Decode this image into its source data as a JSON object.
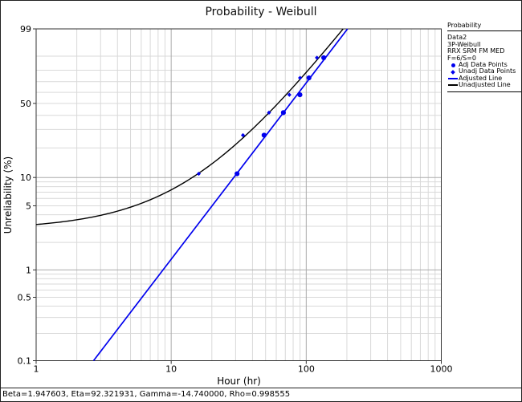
{
  "colors": {
    "series_blue": "#0000ee",
    "line_black": "#000000",
    "grid_minor": "#d9d9d9",
    "grid_major": "#ababab",
    "frame": "#333333"
  },
  "legend": {
    "header": "Probability",
    "info_lines": [
      "Data2",
      "3P-Weibull",
      "RRX SRM FM MED",
      "F=6/S=0"
    ],
    "items": [
      {
        "marker": "circle",
        "label": "Adj Data Points"
      },
      {
        "marker": "diamond",
        "label": "Unadj Data Points"
      },
      {
        "marker": "line-blue",
        "label": "Adjusted Line"
      },
      {
        "marker": "line-black",
        "label": "Unadjusted Line"
      }
    ]
  },
  "status_bar": {
    "text": "Beta=1.947603, Eta=92.321931, Gamma=-14.740000, Rho=0.998555"
  },
  "chart_data": {
    "type": "scatter",
    "title": "Probability - Weibull",
    "xlabel": "Hour (hr)",
    "ylabel": "Unreliability (%)",
    "x_scale": "log",
    "y_scale": "weibull-probability",
    "xlim": [
      1,
      1000
    ],
    "ylim": [
      0.1,
      99
    ],
    "x_ticks": [
      1,
      10,
      100,
      1000
    ],
    "y_ticks": [
      99,
      50,
      10,
      5,
      1,
      0.5,
      0.1
    ],
    "grid": true,
    "legend_position": "outside-top-right",
    "model": {
      "distribution": "3P-Weibull",
      "analysis": "RRX SRM FM MED",
      "sample": "F=6/S=0",
      "beta": 1.947603,
      "eta": 92.321931,
      "gamma": -14.74,
      "rho": 0.998555
    },
    "series": [
      {
        "name": "Adj Data Points",
        "type": "scatter",
        "marker": "circle",
        "color": "#0000ee",
        "x": [
          30.74,
          48.74,
          67.74,
          89.74,
          104.74,
          134.74
        ],
        "y": [
          10.94,
          26.56,
          42.19,
          57.81,
          73.44,
          89.06
        ]
      },
      {
        "name": "Unadj Data Points",
        "type": "scatter",
        "marker": "diamond",
        "color": "#0000ee",
        "x": [
          16,
          34,
          53,
          75,
          90,
          120
        ],
        "y": [
          10.94,
          26.56,
          42.19,
          57.81,
          73.44,
          89.06
        ]
      },
      {
        "name": "Adjusted Line",
        "type": "line",
        "color": "#0000ee",
        "uses_gamma_shift": false
      },
      {
        "name": "Unadjusted Line",
        "type": "line",
        "color": "#000000",
        "uses_gamma_shift": true
      }
    ]
  }
}
